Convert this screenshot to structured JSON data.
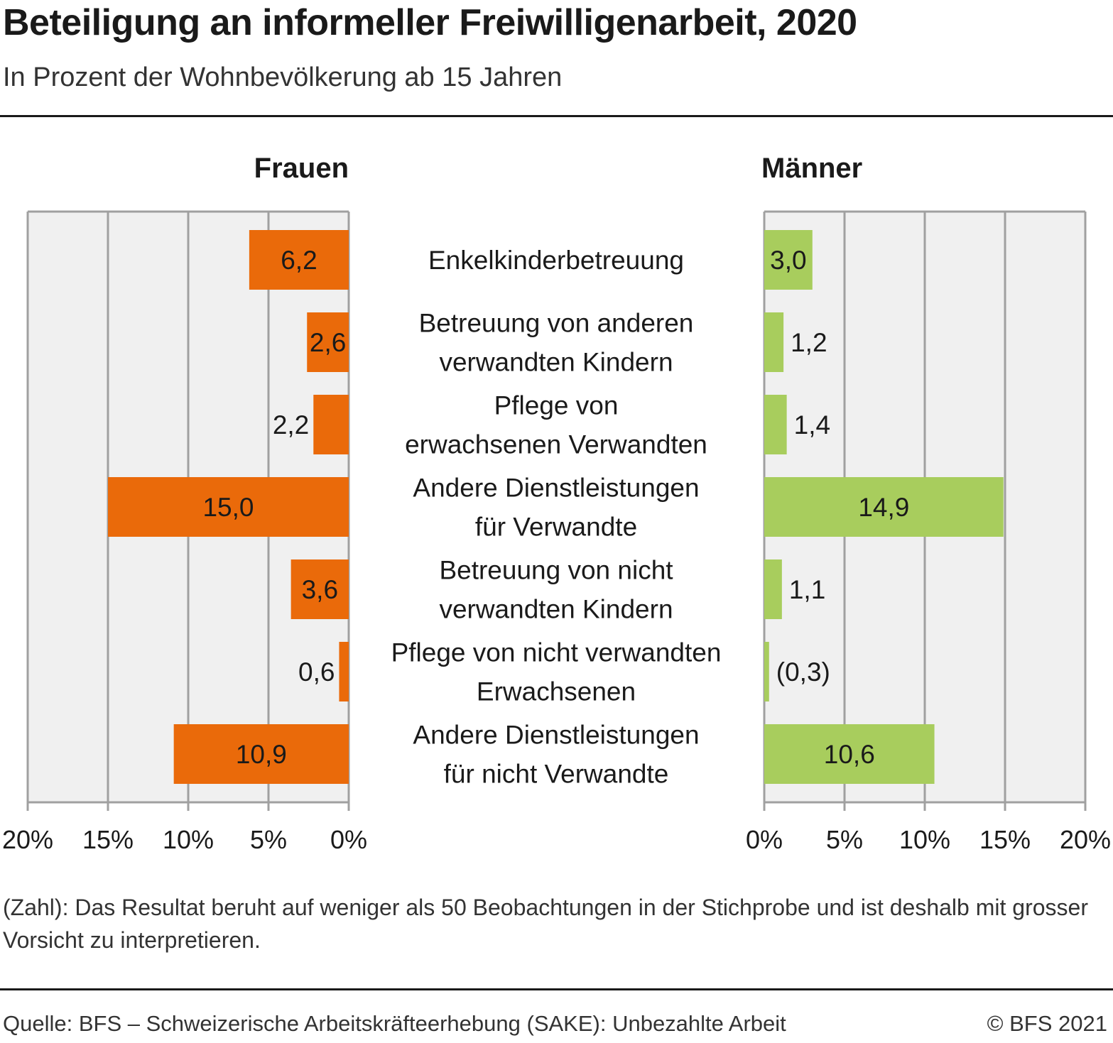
{
  "header": {
    "title": "Beteiligung an informeller Freiwilligenarbeit, 2020",
    "subtitle": "In Prozent der Wohnbevölkerung ab 15 Jahren"
  },
  "chart_data": {
    "type": "bar",
    "layout": "butterfly-horizontal",
    "categories": [
      [
        "Enkelkinderbetreuung"
      ],
      [
        "Betreuung von anderen",
        "verwandten Kindern"
      ],
      [
        "Pflege von",
        "erwachsenen Verwandten"
      ],
      [
        "Andere Dienstleistungen",
        "für Verwandte"
      ],
      [
        "Betreuung von nicht",
        "verwandten Kindern"
      ],
      [
        "Pflege von nicht verwandten",
        "Erwachsenen"
      ],
      [
        "Andere Dienstleistungen",
        "für nicht Verwandte"
      ]
    ],
    "series": [
      {
        "name": "Frauen",
        "color": "#ea6a0a",
        "values": [
          6.2,
          2.6,
          2.2,
          15.0,
          3.6,
          0.6,
          10.9
        ],
        "labels": [
          "6,2",
          "2,6",
          "2,2",
          "15,0",
          "3,6",
          "0,6",
          "10,9"
        ]
      },
      {
        "name": "Männer",
        "color": "#a8cd5d",
        "values": [
          3.0,
          1.2,
          1.4,
          14.9,
          1.1,
          0.3,
          10.6
        ],
        "labels": [
          "3,0",
          "1,2",
          "1,4",
          "14,9",
          "1,1",
          "(0,3)",
          "10,6"
        ]
      }
    ],
    "xlim": [
      0,
      20
    ],
    "xticks": [
      0,
      5,
      10,
      15,
      20
    ],
    "xtick_labels": [
      "0%",
      "5%",
      "10%",
      "15%",
      "20%"
    ],
    "grid": true,
    "panel_background": "#f0f0f0",
    "grid_color": "#a0a0a0"
  },
  "footer": {
    "note": "(Zahl): Das Resultat beruht auf weniger als 50 Beobachtungen in der Stichprobe und ist deshalb mit grosser Vorsicht zu interpretieren.",
    "source": "Quelle: BFS – Schweizerische Arbeitskräfteerhebung (SAKE): Unbezahlte Arbeit",
    "copyright": "© BFS 2021"
  }
}
